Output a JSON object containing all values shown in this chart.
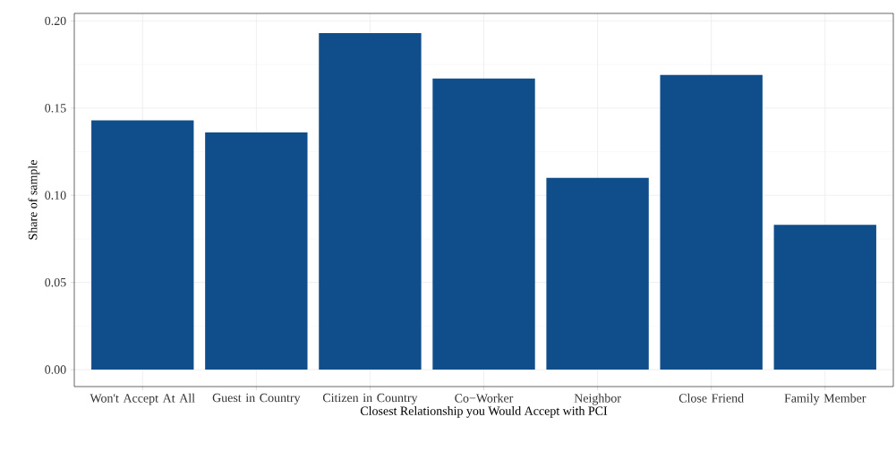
{
  "chart_data": {
    "type": "bar",
    "xlabel": "Closest Relationship you Would Accept with PCI",
    "ylabel": "Share of sample",
    "categories": [
      "Won't Accept At All",
      "Guest in Country",
      "Citizen in Country",
      "Co−Worker",
      "Neighbor",
      "Close Friend",
      "Family Member"
    ],
    "values": [
      0.143,
      0.136,
      0.193,
      0.167,
      0.11,
      0.169,
      0.083
    ],
    "color": "#0f4e8a",
    "ylim": [
      -0.0097,
      0.2043
    ],
    "yticks": [
      {
        "value": 0,
        "label": "0.00"
      },
      {
        "value": 0.05,
        "label": "0.05"
      },
      {
        "value": 0.1,
        "label": "0.10"
      },
      {
        "value": 0.15,
        "label": "0.15"
      },
      {
        "value": 0.2,
        "label": "0.20"
      }
    ],
    "grid": true
  }
}
